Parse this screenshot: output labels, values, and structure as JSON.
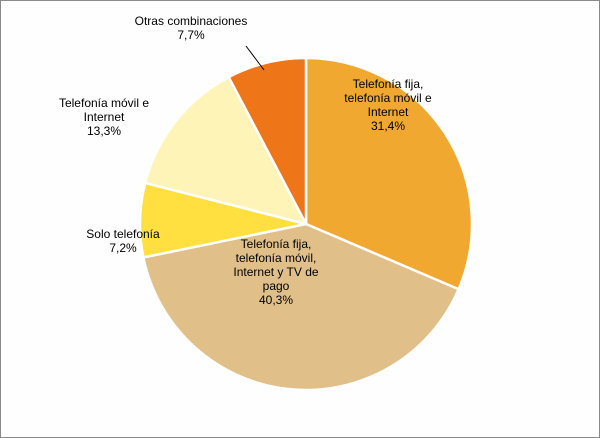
{
  "chart_data": {
    "type": "pie",
    "start": "top",
    "direction": "clockwise",
    "slices": [
      {
        "label": [
          "Telefonía fija,",
          "telefonía móvil e",
          "Internet"
        ],
        "value": 31.4,
        "value_label": "31,4%",
        "color": "#F0A830"
      },
      {
        "label": [
          "Telefonía fija,",
          "telefonía móvil,",
          "Internet y TV de",
          "pago"
        ],
        "value": 40.3,
        "value_label": "40,3%",
        "color": "#E0C088"
      },
      {
        "label": [
          "Solo telefonía"
        ],
        "value": 7.2,
        "value_label": "7,2%",
        "color": "#FFE040"
      },
      {
        "label": [
          "Telefonía móvil e",
          "Internet"
        ],
        "value": 13.3,
        "value_label": "13,3%",
        "color": "#FFF4B8"
      },
      {
        "label": [
          "Otras combinaciones"
        ],
        "value": 7.7,
        "value_label": "7,7%",
        "color": "#EE7518"
      }
    ],
    "border_color": "#ffffff"
  }
}
